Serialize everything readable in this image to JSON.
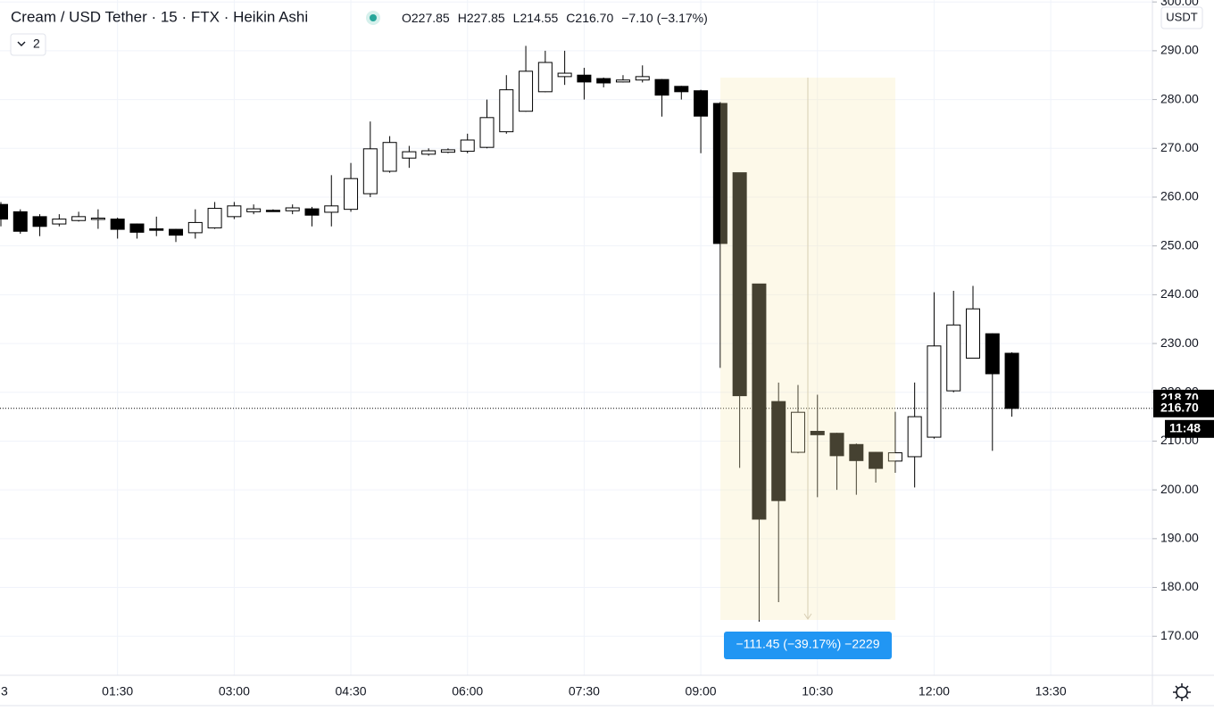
{
  "chart_data": {
    "type": "candlestick",
    "title": "Cream / USD Tether · 15 · FTX · Heikin Ashi",
    "indicator_count": "2",
    "currency": "USDT",
    "ohlc_legend": [
      {
        "key": "O",
        "text": "227.85"
      },
      {
        "key": "H",
        "text": "227.85"
      },
      {
        "key": "L",
        "text": "214.55"
      },
      {
        "key": "C",
        "text": "216.70"
      }
    ],
    "change": "−7.10 (−3.17%)",
    "measure_label": "−111.45 (−39.17%) −2229",
    "categories": [
      "3",
      null,
      null,
      null,
      null,
      null,
      "01:30",
      null,
      null,
      null,
      null,
      null,
      "03:00",
      null,
      null,
      null,
      null,
      null,
      "04:30",
      null,
      null,
      null,
      null,
      null,
      "06:00",
      null,
      null,
      null,
      null,
      null,
      "07:30",
      null,
      null,
      null,
      null,
      null,
      "09:00",
      null,
      null,
      null,
      null,
      null,
      "10:30",
      null,
      null,
      null,
      null,
      null,
      "12:00",
      null,
      null,
      null,
      null,
      null,
      "13:30"
    ],
    "open": [
      258.5,
      257,
      256,
      254.5,
      255.2,
      255.6,
      255.5,
      254.5,
      253.5,
      253.4,
      252.7,
      253.7,
      256,
      257,
      257.3,
      257.2,
      257.6,
      256.9,
      257.5,
      260.7,
      265.3,
      268,
      268.8,
      269.2,
      269.4,
      270.2,
      273.4,
      277.6,
      281.6,
      284.7,
      285,
      284.3,
      283.6,
      284,
      284.1,
      282.7,
      281.8,
      279.2,
      265,
      242.2,
      218.1,
      207.7,
      212,
      211.6,
      209.3,
      207.7,
      205.9,
      206.8,
      210.8,
      220.3,
      227,
      232,
      228,
      null,
      null
    ],
    "high": [
      259,
      257.5,
      256.5,
      256.5,
      257,
      257.5,
      255.8,
      254.6,
      256,
      253.5,
      257.5,
      259,
      259,
      258.5,
      257.5,
      258.5,
      258,
      264.5,
      267,
      275.5,
      272.5,
      270.5,
      270,
      270,
      273,
      280,
      285,
      291,
      290,
      290,
      286.5,
      284.5,
      285,
      287,
      284.2,
      282.8,
      282,
      279.5,
      265,
      242.2,
      222,
      221.5,
      219.5,
      211.7,
      209.5,
      207.8,
      216,
      222,
      240.5,
      240.8,
      241.8,
      232.1,
      228.2,
      null,
      null
    ],
    "low": [
      254,
      252.5,
      252,
      254,
      255,
      253.5,
      251.5,
      251.5,
      252,
      250.8,
      251.5,
      253.5,
      255.5,
      256.5,
      257,
      256.5,
      254,
      254,
      257,
      260,
      265,
      266,
      268.5,
      269,
      269,
      270,
      273,
      277.5,
      281.5,
      283,
      280,
      282.5,
      283.5,
      283.5,
      276.5,
      280,
      269,
      225,
      204.5,
      173,
      177,
      207.5,
      198.5,
      200,
      199,
      201.5,
      203.5,
      200.5,
      210.5,
      220,
      227,
      208,
      215,
      null,
      null
    ],
    "close": [
      255.5,
      253,
      254,
      255.5,
      256,
      255.7,
      253.4,
      252.8,
      253.2,
      252.2,
      254.8,
      257.7,
      258.2,
      257.6,
      257.1,
      257.8,
      256.3,
      258.2,
      263.8,
      269.9,
      271.2,
      269.3,
      269.5,
      269.7,
      271.7,
      276.3,
      282,
      285.8,
      287.6,
      285.4,
      283.6,
      283.4,
      284,
      284.7,
      280.9,
      281.6,
      276.6,
      250.5,
      219.3,
      194,
      197.8,
      215.9,
      211.3,
      207,
      206,
      204.4,
      207.6,
      215,
      229.5,
      233.8,
      237.1,
      223.8,
      216.7,
      null,
      null
    ],
    "up_color": "#ffffff",
    "down_color": "#000000",
    "ylim": [
      162,
      300.4
    ],
    "yticks": [
      {
        "value": 170,
        "label": "170.00"
      },
      {
        "value": 180,
        "label": "180.00"
      },
      {
        "value": 190,
        "label": "190.00"
      },
      {
        "value": 200,
        "label": "200.00"
      },
      {
        "value": 210,
        "label": "210.00"
      },
      {
        "value": 220,
        "label": "220.00"
      },
      {
        "value": 230,
        "label": "230.00"
      },
      {
        "value": 240,
        "label": "240.00"
      },
      {
        "value": 250,
        "label": "250.00"
      },
      {
        "value": 260,
        "label": "260.00"
      },
      {
        "value": 270,
        "label": "270.00"
      },
      {
        "value": 280,
        "label": "280.00"
      },
      {
        "value": 290,
        "label": "290.00"
      },
      {
        "value": 300,
        "label": "300.00"
      }
    ],
    "price_labels": [
      {
        "value": 218.7,
        "label": "218.70"
      },
      {
        "value": 216.7,
        "label": "216.70"
      }
    ],
    "countdown": "11:48",
    "grid": true
  }
}
